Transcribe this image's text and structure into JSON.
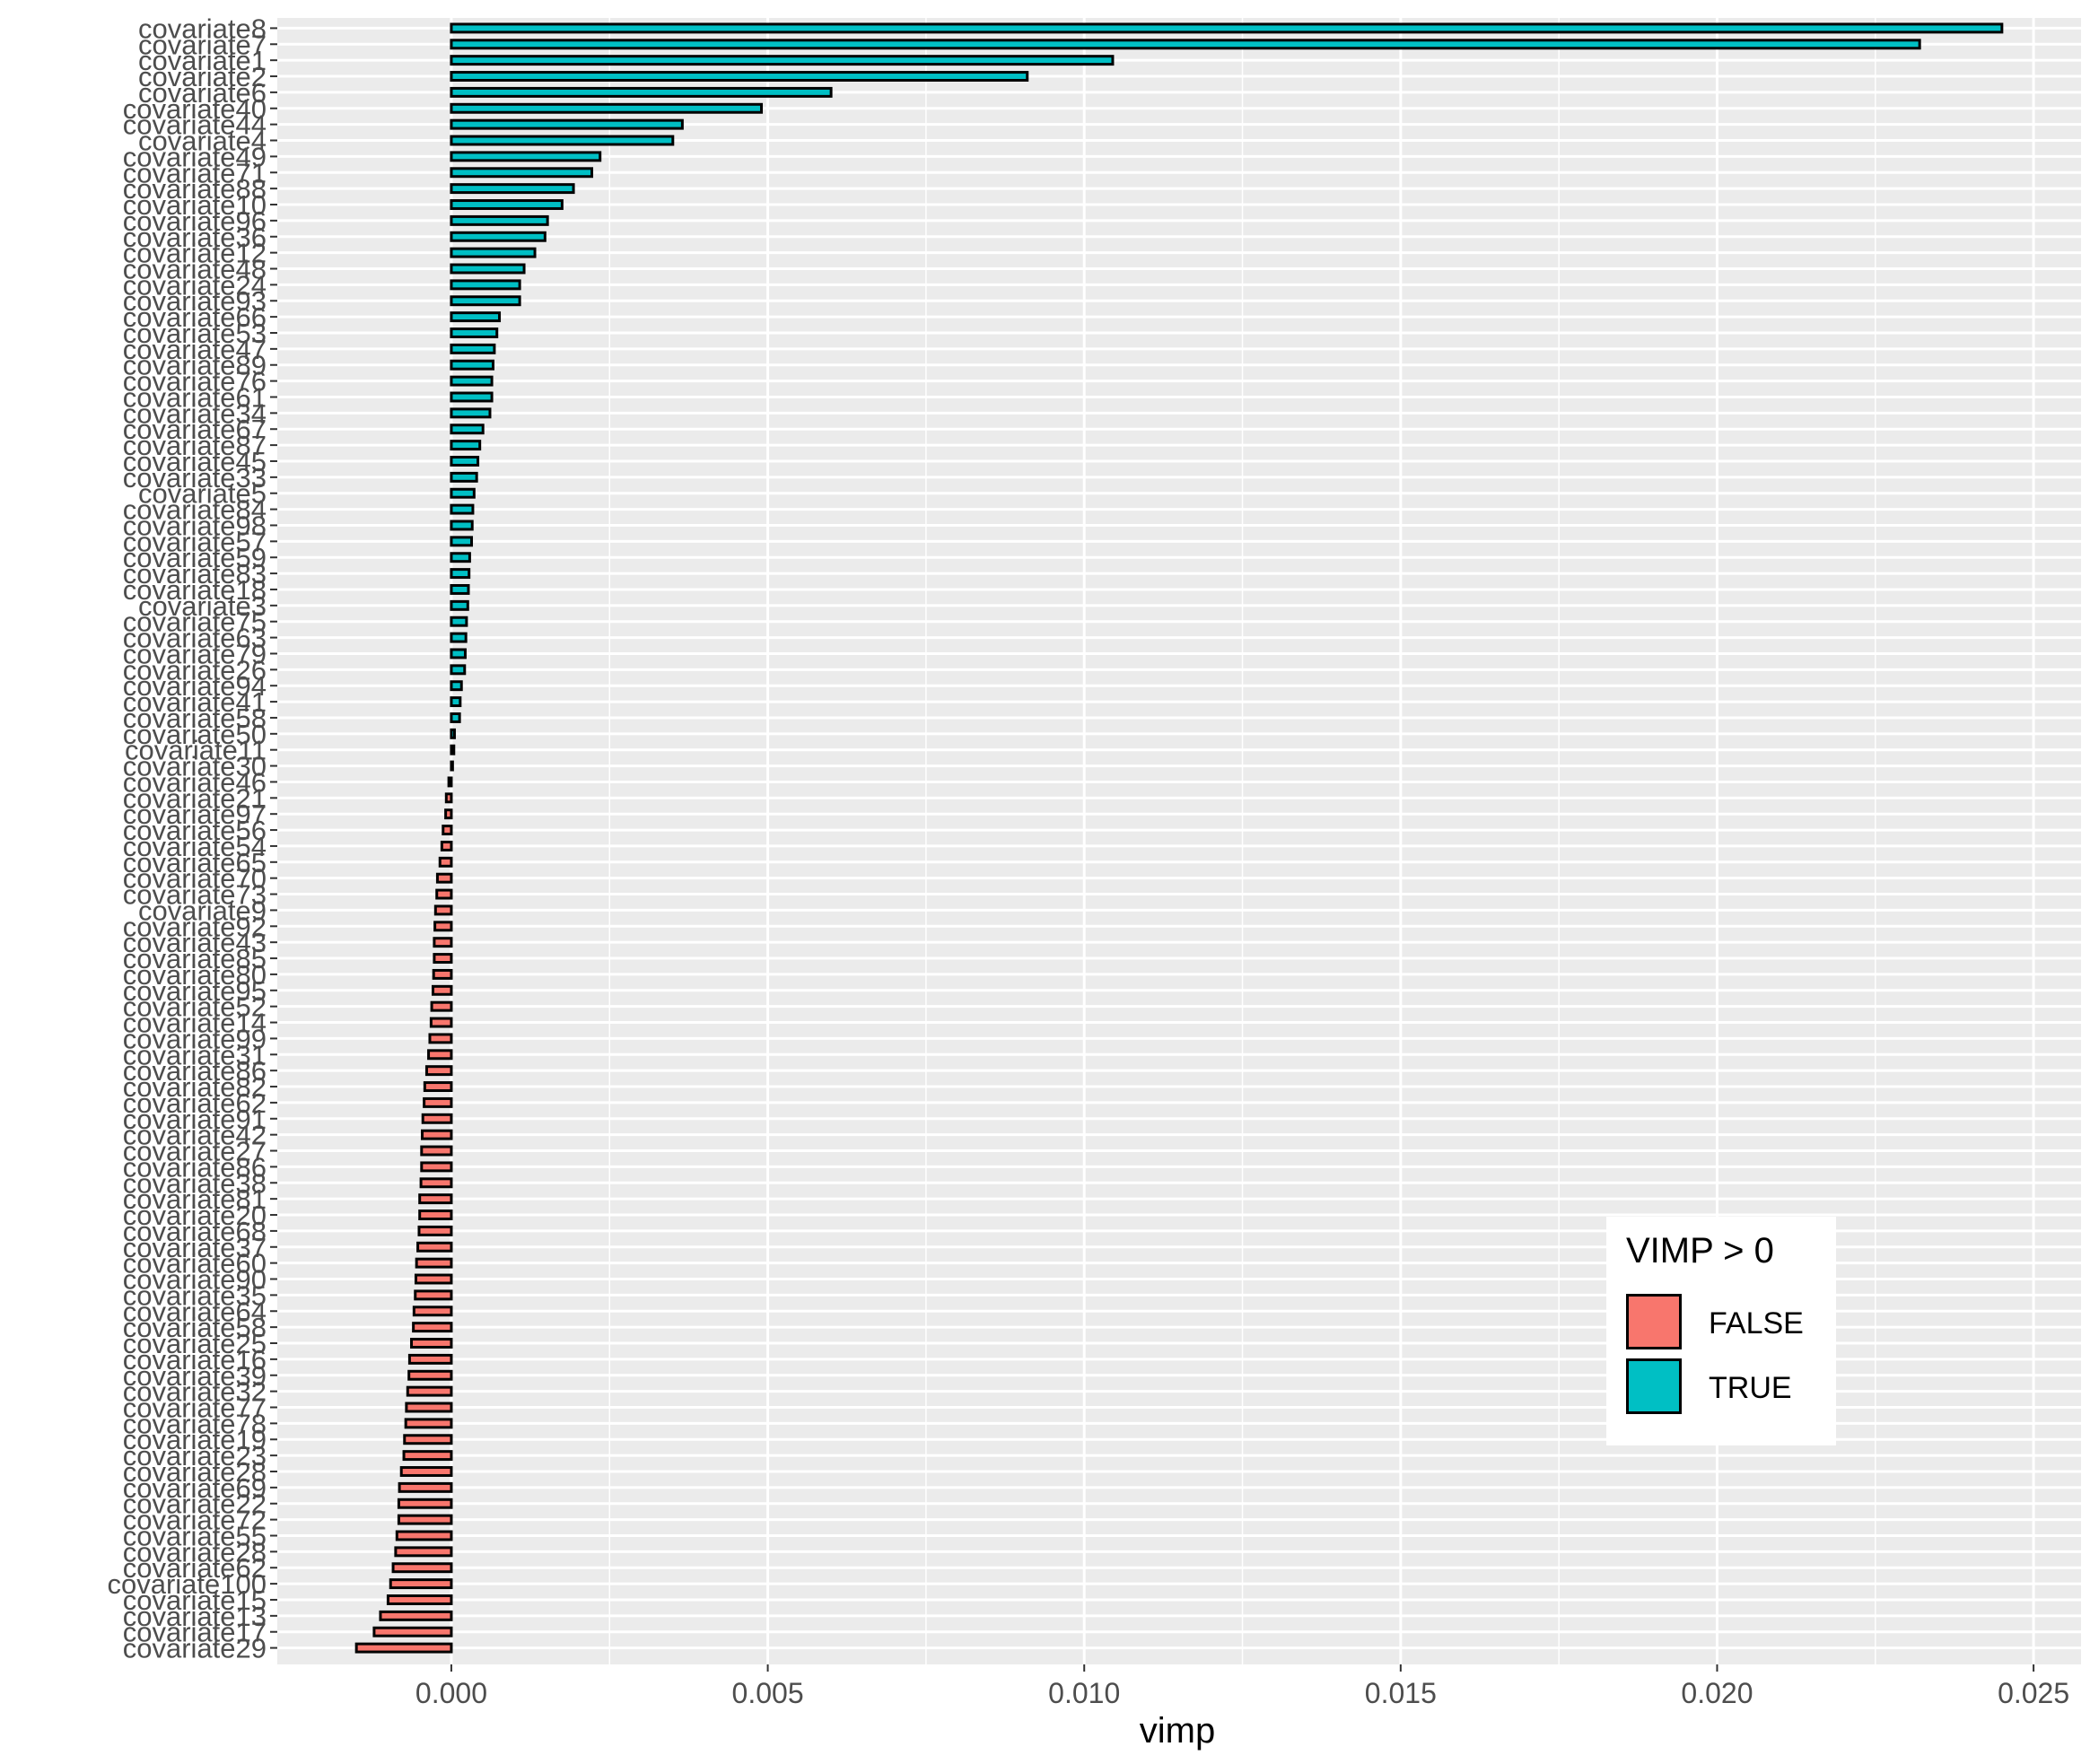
{
  "chart_data": {
    "type": "bar",
    "orientation": "horizontal",
    "xlabel": "vimp",
    "ylabel": "",
    "xlim": [
      -0.00275,
      0.02575
    ],
    "xticks": [
      0.0,
      0.005,
      0.01,
      0.015,
      0.02,
      0.025
    ],
    "xtick_labels": [
      "0.000",
      "0.005",
      "0.010",
      "0.015",
      "0.020",
      "0.025"
    ],
    "grid": true,
    "legend": {
      "title": "VIMP > 0",
      "placement": "bottom-right",
      "entries": [
        {
          "label": "FALSE",
          "color": "#F8766D"
        },
        {
          "label": "TRUE",
          "color": "#00BFC4"
        }
      ]
    },
    "colors": {
      "TRUE": "#00BFC4",
      "FALSE": "#F8766D",
      "outline": "#000000",
      "panel": "#EBEBEB",
      "grid": "#FFFFFF"
    },
    "categories": [
      "covariate8",
      "covariate7",
      "covariate1",
      "covariate2",
      "covariate6",
      "covariate40",
      "covariate44",
      "covariate4",
      "covariate49",
      "covariate71",
      "covariate88",
      "covariate10",
      "covariate96",
      "covariate36",
      "covariate12",
      "covariate48",
      "covariate24",
      "covariate93",
      "covariate66",
      "covariate53",
      "covariate47",
      "covariate89",
      "covariate76",
      "covariate61",
      "covariate34",
      "covariate67",
      "covariate87",
      "covariate45",
      "covariate33",
      "covariate5",
      "covariate84",
      "covariate98",
      "covariate57",
      "covariate59",
      "covariate83",
      "covariate18",
      "covariate3",
      "covariate75",
      "covariate63",
      "covariate79",
      "covariate26",
      "covariate94",
      "covariate41",
      "covariate58",
      "covariate50",
      "covariate11",
      "covariate30",
      "covariate46",
      "covariate21",
      "covariate97",
      "covariate56",
      "covariate54",
      "covariate65",
      "covariate70",
      "covariate73",
      "covariate9",
      "covariate92",
      "covariate43",
      "covariate85",
      "covariate80",
      "covariate95",
      "covariate52",
      "covariate14",
      "covariate99",
      "covariate31",
      "covariate86",
      "covariate82",
      "covariate62",
      "covariate91",
      "covariate42",
      "covariate27",
      "covariate86",
      "covariate38",
      "covariate81",
      "covariate20",
      "covariate68",
      "covariate37",
      "covariate60",
      "covariate90",
      "covariate35",
      "covariate64",
      "covariate58",
      "covariate25",
      "covariate16",
      "covariate39",
      "covariate32",
      "covariate77",
      "covariate78",
      "covariate19",
      "covariate23",
      "covariate28",
      "covariate69",
      "covariate22",
      "covariate72",
      "covariate55",
      "covariate28",
      "covariate62",
      "covariate100",
      "covariate15",
      "covariate13",
      "covariate17",
      "covariate29"
    ],
    "values": [
      0.0245,
      0.0232,
      0.01045,
      0.0091,
      0.006,
      0.0049,
      0.00365,
      0.0035,
      0.00235,
      0.00222,
      0.00193,
      0.00175,
      0.00152,
      0.00148,
      0.00132,
      0.00115,
      0.00108,
      0.00108,
      0.00076,
      0.00072,
      0.00068,
      0.00066,
      0.00064,
      0.00064,
      0.00061,
      0.0005,
      0.00045,
      0.00042,
      0.0004,
      0.00036,
      0.00034,
      0.00033,
      0.00032,
      0.00029,
      0.00028,
      0.00027,
      0.00026,
      0.00024,
      0.00023,
      0.00022,
      0.00021,
      0.00016,
      0.00014,
      0.00013,
      5e-05,
      4e-05,
      2e-05,
      -4e-05,
      -8e-05,
      -9e-05,
      -0.00013,
      -0.00015,
      -0.00018,
      -0.00022,
      -0.00023,
      -0.00025,
      -0.00026,
      -0.00027,
      -0.00027,
      -0.00028,
      -0.00029,
      -0.00031,
      -0.00032,
      -0.00034,
      -0.00036,
      -0.00039,
      -0.00042,
      -0.00043,
      -0.00045,
      -0.00046,
      -0.00047,
      -0.00047,
      -0.00048,
      -0.0005,
      -0.0005,
      -0.00051,
      -0.00053,
      -0.00055,
      -0.00056,
      -0.00057,
      -0.00059,
      -0.0006,
      -0.00063,
      -0.00066,
      -0.00067,
      -0.00069,
      -0.00071,
      -0.00072,
      -0.00074,
      -0.00075,
      -0.00079,
      -0.00082,
      -0.00083,
      -0.00083,
      -0.00086,
      -0.00088,
      -0.00092,
      -0.00096,
      -0.001,
      -0.00112,
      -0.00122,
      -0.0015
    ]
  }
}
